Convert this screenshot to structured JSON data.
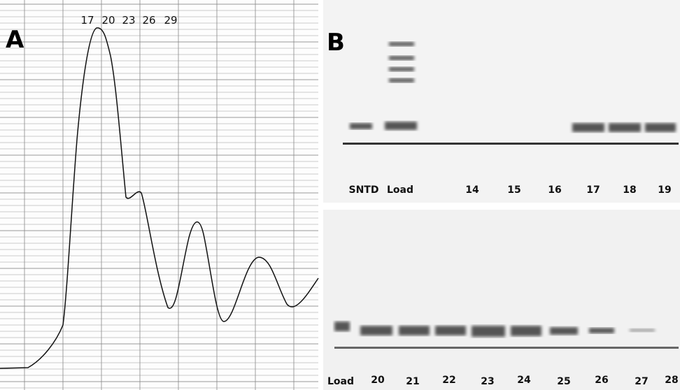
{
  "panel_a": {
    "label": "A",
    "fractions": [
      "17",
      "20",
      "23",
      "26",
      "29"
    ]
  },
  "panel_b": {
    "label": "B",
    "top_gel": {
      "lanes": [
        "SNTD",
        "Load",
        "14",
        "15",
        "16",
        "17",
        "18",
        "19"
      ]
    },
    "bottom_gel": {
      "lanes": [
        "Load",
        "20",
        "21",
        "22",
        "23",
        "24",
        "25",
        "26",
        "27",
        "28"
      ]
    }
  }
}
